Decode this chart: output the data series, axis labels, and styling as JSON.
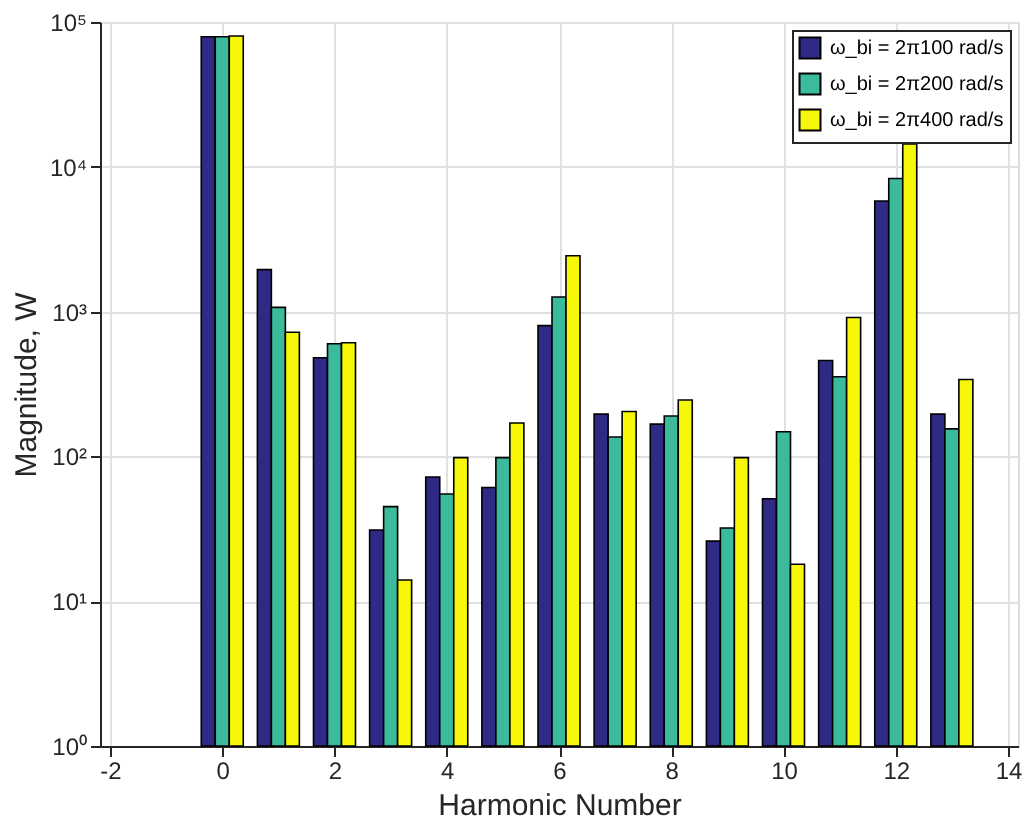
{
  "chart_data": {
    "type": "bar",
    "xlabel": "Harmonic Number",
    "ylabel": "Magnitude, W",
    "x": [
      0,
      1,
      2,
      3,
      4,
      5,
      6,
      7,
      8,
      9,
      10,
      11,
      12,
      13
    ],
    "series": [
      {
        "name": "ω_bi = 2π100 rad/s",
        "color": "#2e2a85",
        "values": [
          79000,
          1950,
          480,
          31,
          72,
          61,
          800,
          196,
          167,
          26,
          51,
          460,
          5800,
          196
        ]
      },
      {
        "name": "ω_bi = 2π200 rad/s",
        "color": "#3bbb9b",
        "values": [
          79000,
          1070,
          600,
          45,
          55,
          98,
          1260,
          136,
          190,
          32,
          148,
          355,
          8300,
          155
        ]
      },
      {
        "name": "ω_bi = 2π400 rad/s",
        "color": "#f7f70a",
        "values": [
          80000,
          720,
          610,
          14,
          98,
          170,
          2430,
          204,
          245,
          98,
          18,
          910,
          14400,
          340
        ]
      }
    ],
    "log": "y",
    "xlim": [
      -2,
      14
    ],
    "xticks": [
      -2,
      0,
      2,
      4,
      6,
      8,
      10,
      12,
      14
    ],
    "ylim": [
      1,
      100000
    ],
    "yticks": [
      {
        "value": 1,
        "label": "10⁰"
      },
      {
        "value": 10,
        "label": "10¹"
      },
      {
        "value": 100,
        "label": "10²"
      },
      {
        "value": 1000,
        "label": "10³"
      },
      {
        "value": 10000,
        "label": "10⁴"
      },
      {
        "value": 100000,
        "label": "10⁵"
      }
    ],
    "grid": true,
    "legend": "top right"
  }
}
